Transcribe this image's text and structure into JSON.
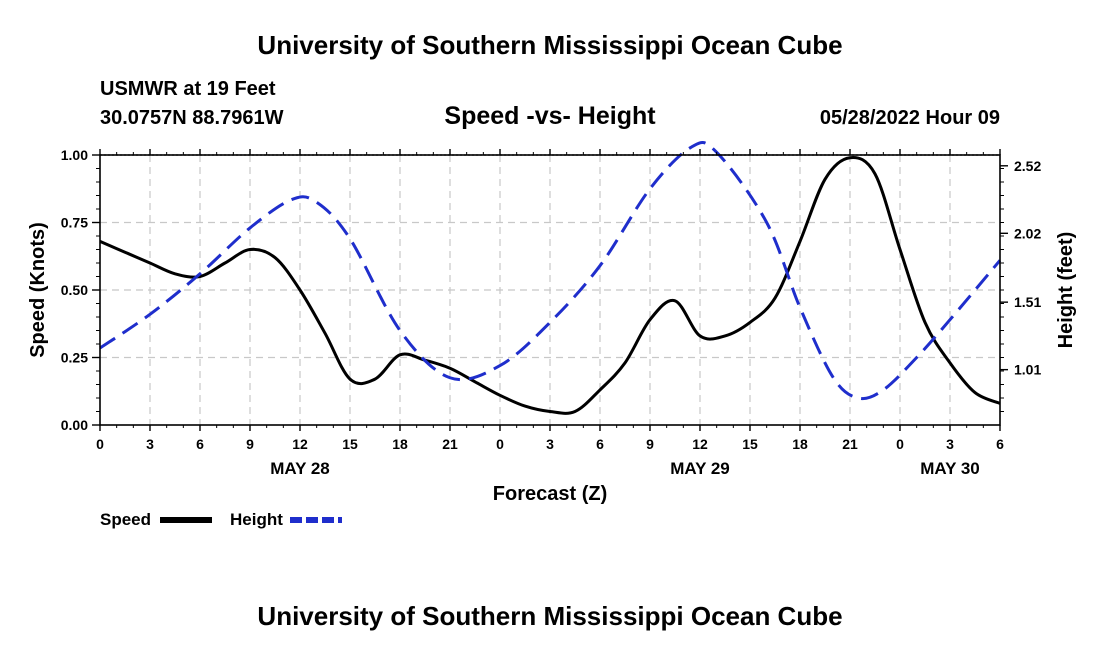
{
  "header": {
    "title": "University of Southern Mississippi Ocean Cube",
    "station": "USMWR at 19 Feet",
    "coords": "30.0757N  88.7961W",
    "datetime": "05/28/2022 Hour 09"
  },
  "footer": {
    "title": "University of Southern Mississippi Ocean Cube"
  },
  "chart_data": {
    "type": "line",
    "title": "Speed -vs- Height",
    "xlabel": "Forecast (Z)",
    "ylabel": "Speed (Knots)",
    "y2label": "Height (feet)",
    "x_range_hours": [
      0,
      54
    ],
    "x_tick_hours": [
      0,
      3,
      6,
      9,
      12,
      15,
      18,
      21,
      24,
      27,
      30,
      33,
      36,
      39,
      42,
      45,
      48,
      51,
      54
    ],
    "x_tick_labels": [
      "0",
      "3",
      "6",
      "9",
      "12",
      "15",
      "18",
      "21",
      "0",
      "3",
      "6",
      "9",
      "12",
      "15",
      "18",
      "21",
      "0",
      "3",
      "6"
    ],
    "date_labels": [
      {
        "hour": 12,
        "label": "MAY 28"
      },
      {
        "hour": 36,
        "label": "MAY 29"
      },
      {
        "hour": 51,
        "label": "MAY 30"
      }
    ],
    "ylim": [
      0,
      1
    ],
    "y_ticks": [
      0,
      0.25,
      0.5,
      0.75,
      1.0
    ],
    "y_tick_labels": [
      "0.00",
      "0.25",
      "0.50",
      "0.75",
      "1.00"
    ],
    "y2lim": [
      0.6,
      2.6
    ],
    "y2_ticks": [
      1.01,
      1.51,
      2.02,
      2.52
    ],
    "y2_tick_labels": [
      "1.01",
      "1.51",
      "2.02",
      "2.52"
    ],
    "series": [
      {
        "name": "Speed",
        "axis": "left",
        "color": "#000000",
        "style": "solid",
        "points": [
          [
            0,
            0.68
          ],
          [
            1.5,
            0.64
          ],
          [
            3,
            0.6
          ],
          [
            4.5,
            0.56
          ],
          [
            6,
            0.55
          ],
          [
            7.5,
            0.6
          ],
          [
            9,
            0.65
          ],
          [
            10.5,
            0.62
          ],
          [
            12,
            0.5
          ],
          [
            13.5,
            0.34
          ],
          [
            15,
            0.17
          ],
          [
            16.5,
            0.17
          ],
          [
            18,
            0.26
          ],
          [
            19.5,
            0.24
          ],
          [
            21,
            0.21
          ],
          [
            22.5,
            0.16
          ],
          [
            24,
            0.11
          ],
          [
            25.5,
            0.07
          ],
          [
            27,
            0.05
          ],
          [
            28.5,
            0.05
          ],
          [
            30,
            0.13
          ],
          [
            31.5,
            0.23
          ],
          [
            33,
            0.39
          ],
          [
            34.5,
            0.46
          ],
          [
            36,
            0.33
          ],
          [
            37.5,
            0.33
          ],
          [
            39,
            0.38
          ],
          [
            40.5,
            0.47
          ],
          [
            42,
            0.68
          ],
          [
            43.5,
            0.91
          ],
          [
            45,
            0.99
          ],
          [
            46.5,
            0.93
          ],
          [
            48,
            0.65
          ],
          [
            49.5,
            0.38
          ],
          [
            51,
            0.23
          ],
          [
            52.5,
            0.12
          ],
          [
            54,
            0.08
          ]
        ]
      },
      {
        "name": "Height",
        "axis": "right",
        "color": "#1f2ecc",
        "style": "dashed",
        "points": [
          [
            0,
            1.17
          ],
          [
            3,
            1.42
          ],
          [
            6,
            1.72
          ],
          [
            9,
            2.06
          ],
          [
            11.5,
            2.27
          ],
          [
            13,
            2.25
          ],
          [
            15,
            1.98
          ],
          [
            18,
            1.3
          ],
          [
            21,
            0.95
          ],
          [
            24,
            1.04
          ],
          [
            27,
            1.36
          ],
          [
            30,
            1.78
          ],
          [
            33,
            2.35
          ],
          [
            35.5,
            2.66
          ],
          [
            37,
            2.62
          ],
          [
            40,
            2.1
          ],
          [
            42,
            1.47
          ],
          [
            44,
            0.95
          ],
          [
            45.5,
            0.8
          ],
          [
            47,
            0.86
          ],
          [
            49,
            1.1
          ],
          [
            51,
            1.38
          ],
          [
            54,
            1.82
          ]
        ]
      }
    ],
    "legend": {
      "position": "bottom-left",
      "entries": [
        {
          "label": "Speed",
          "color": "#000000",
          "style": "solid"
        },
        {
          "label": "Height",
          "color": "#1f2ecc",
          "style": "dashed"
        }
      ]
    },
    "grid": true
  }
}
